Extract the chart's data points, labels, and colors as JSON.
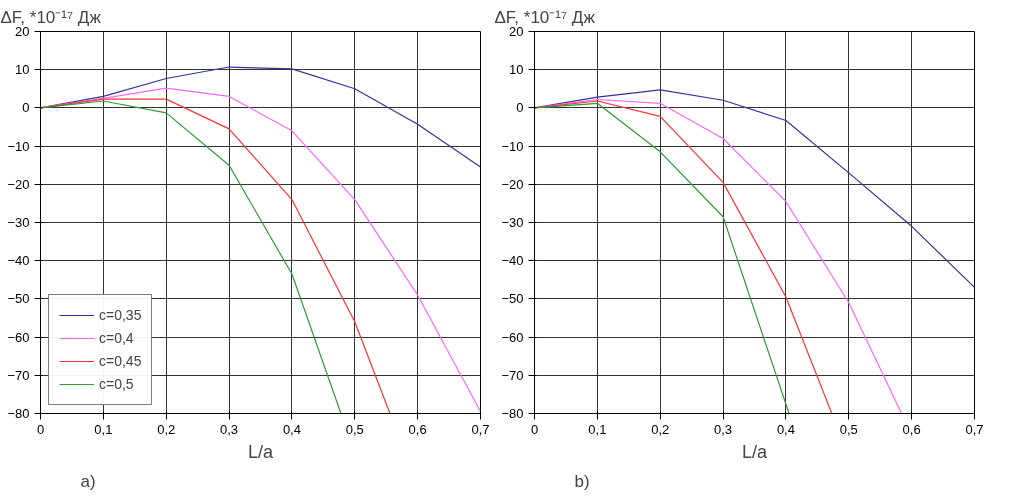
{
  "chart_data": [
    {
      "type": "line",
      "ylabel": "ΔF, *10⁻¹⁷ Дж",
      "xlabel": "L/a",
      "annotations": [
        "a)"
      ],
      "x": [
        0,
        0.1,
        0.2,
        0.3,
        0.4,
        0.5,
        0.6,
        0.7
      ],
      "xlim": [
        0,
        0.7
      ],
      "ylim": [
        -80,
        20
      ],
      "xticks": [
        0,
        {
          "value": 0.1,
          "label": "0,1"
        },
        {
          "value": 0.2,
          "label": "0,2"
        },
        {
          "value": 0.3,
          "label": "0,3"
        },
        {
          "value": 0.4,
          "label": "0,4"
        },
        {
          "value": 0.5,
          "label": "0,5"
        },
        {
          "value": 0.6,
          "label": "0,6"
        },
        {
          "value": 0.7,
          "label": "0,7"
        }
      ],
      "yticks": [
        -80,
        -70,
        -60,
        -50,
        -40,
        -30,
        -20,
        -10,
        0,
        10,
        20
      ],
      "grid": true,
      "legend": "bottom left",
      "marker": "none",
      "line_style": "solid",
      "series": [
        {
          "name": "c=0,35",
          "color": "#333399",
          "values": [
            0,
            3,
            7.7,
            10.7,
            10.2,
            5,
            -4.3,
            -15.5
          ]
        },
        {
          "name": "c=0,4",
          "color": "#ff66ff",
          "values": [
            0,
            2.5,
            5.2,
            3,
            -6,
            -24,
            -49,
            -79.5
          ]
        },
        {
          "name": "c=0,45",
          "color": "#ff3333",
          "x": [
            0,
            0.1,
            0.2,
            0.3,
            0.4,
            0.5,
            0.556
          ],
          "values": [
            0,
            2.3,
            2.3,
            -5.5,
            -24,
            -56,
            -80
          ]
        },
        {
          "name": "c=0,5",
          "color": "#339933",
          "x": [
            0,
            0.1,
            0.2,
            0.3,
            0.4,
            0.478
          ],
          "values": [
            0,
            1.8,
            -1.3,
            -15,
            -43.5,
            -80
          ]
        }
      ]
    },
    {
      "type": "line",
      "ylabel": "ΔF, *10⁻¹⁷ Дж",
      "xlabel": "L/a",
      "annotations": [
        "b)"
      ],
      "x": [
        0,
        0.1,
        0.2,
        0.3,
        0.4,
        0.5,
        0.6,
        0.7
      ],
      "xlim": [
        0,
        0.7
      ],
      "ylim": [
        -80,
        20
      ],
      "xticks": [
        0,
        {
          "value": 0.1,
          "label": "0,1"
        },
        {
          "value": 0.2,
          "label": "0,2"
        },
        {
          "value": 0.3,
          "label": "0,3"
        },
        {
          "value": 0.4,
          "label": "0,4"
        },
        {
          "value": 0.5,
          "label": "0,5"
        },
        {
          "value": 0.6,
          "label": "0,6"
        },
        {
          "value": 0.7,
          "label": "0,7"
        }
      ],
      "yticks": [
        -80,
        -70,
        -60,
        -50,
        -40,
        -30,
        -20,
        -10,
        0,
        10,
        20
      ],
      "grid": true,
      "marker": "none",
      "line_style": "solid",
      "series": [
        {
          "color": "#333399",
          "values": [
            0,
            2.8,
            4.7,
            2,
            -3.3,
            -17,
            -31,
            -47
          ]
        },
        {
          "color": "#ff66ff",
          "x": [
            0,
            0.1,
            0.2,
            0.3,
            0.4,
            0.5,
            0.584
          ],
          "values": [
            0,
            2.2,
            1.2,
            -8,
            -24.5,
            -51,
            -80
          ]
        },
        {
          "color": "#ff3333",
          "x": [
            0,
            0.1,
            0.2,
            0.3,
            0.4,
            0.473
          ],
          "values": [
            0,
            1.8,
            -2.2,
            -19.5,
            -49.5,
            -80
          ]
        },
        {
          "color": "#339933",
          "x": [
            0,
            0.1,
            0.2,
            0.3,
            0.405
          ],
          "values": [
            0,
            1.2,
            -11.5,
            -28.5,
            -80
          ]
        }
      ]
    }
  ]
}
